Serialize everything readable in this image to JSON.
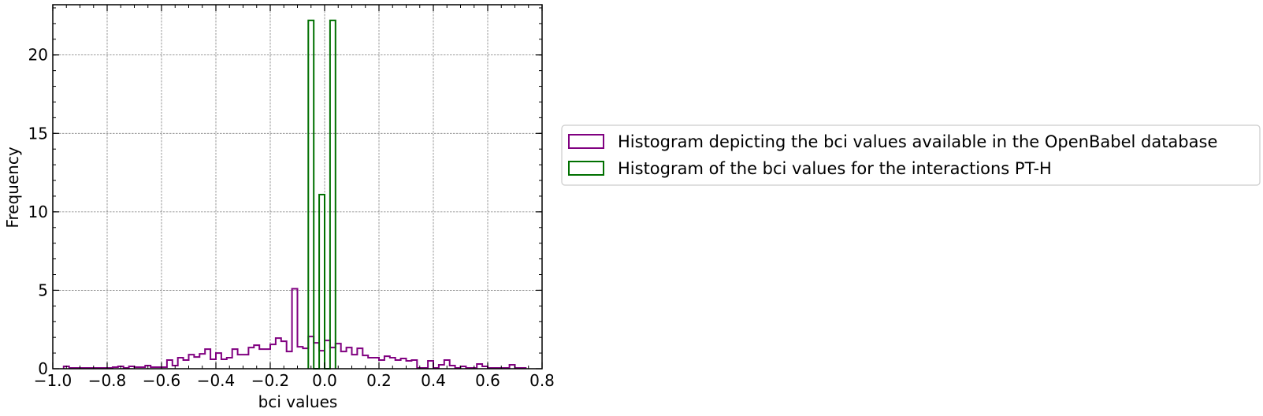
{
  "chart_data": {
    "type": "histogram",
    "xlabel": "bci values",
    "ylabel": "Frequency",
    "xlim": [
      -1.0,
      0.8
    ],
    "ylim": [
      0,
      23.2
    ],
    "xticks": [
      -1.0,
      -0.8,
      -0.6,
      -0.4,
      -0.2,
      0.0,
      0.2,
      0.4,
      0.6,
      0.8
    ],
    "xtick_labels": [
      "−1.0",
      "−0.8",
      "−0.6",
      "−0.4",
      "−0.2",
      "0.0",
      "0.2",
      "0.4",
      "0.6",
      "0.8"
    ],
    "yticks": [
      0,
      5,
      10,
      15,
      20
    ],
    "ytick_labels": [
      "0",
      "5",
      "10",
      "15",
      "20"
    ],
    "grid": true,
    "legend_position": "right",
    "series": [
      {
        "name": "Histogram depicting the bci values available in the OpenBabel database",
        "color": "#800080",
        "bin_start": -0.96,
        "bin_width": 0.02,
        "values": [
          0.15,
          0.05,
          0.05,
          0.05,
          0.05,
          0.05,
          0.05,
          0.05,
          0.05,
          0.1,
          0.15,
          0.05,
          0.15,
          0.1,
          0.1,
          0.2,
          0.1,
          0.1,
          0.1,
          0.55,
          0.2,
          0.7,
          0.55,
          0.9,
          0.75,
          0.95,
          1.25,
          0.6,
          1.0,
          0.6,
          0.7,
          1.25,
          0.9,
          0.9,
          1.35,
          1.5,
          1.25,
          1.25,
          1.55,
          1.95,
          1.75,
          1.1,
          5.1,
          1.4,
          1.3,
          2.05,
          1.65,
          1.15,
          1.8,
          1.35,
          1.6,
          1.1,
          1.35,
          0.9,
          1.3,
          0.85,
          0.7,
          0.7,
          0.55,
          0.8,
          0.7,
          0.55,
          0.65,
          0.5,
          0.55,
          0.05,
          0.05,
          0.5,
          0.05,
          0.25,
          0.55,
          0.2,
          0.05,
          0.15,
          0.05,
          0.05,
          0.3,
          0.15,
          0.05,
          0.05,
          0.05,
          0.05,
          0.25,
          0.05,
          0.05
        ]
      },
      {
        "name": "Histogram of the bci values for the interactions PT-H",
        "color": "#007000",
        "bin_start": -0.06,
        "bin_width": 0.02,
        "values": [
          22.2,
          0.0,
          11.1,
          0.0,
          22.2
        ]
      }
    ]
  }
}
